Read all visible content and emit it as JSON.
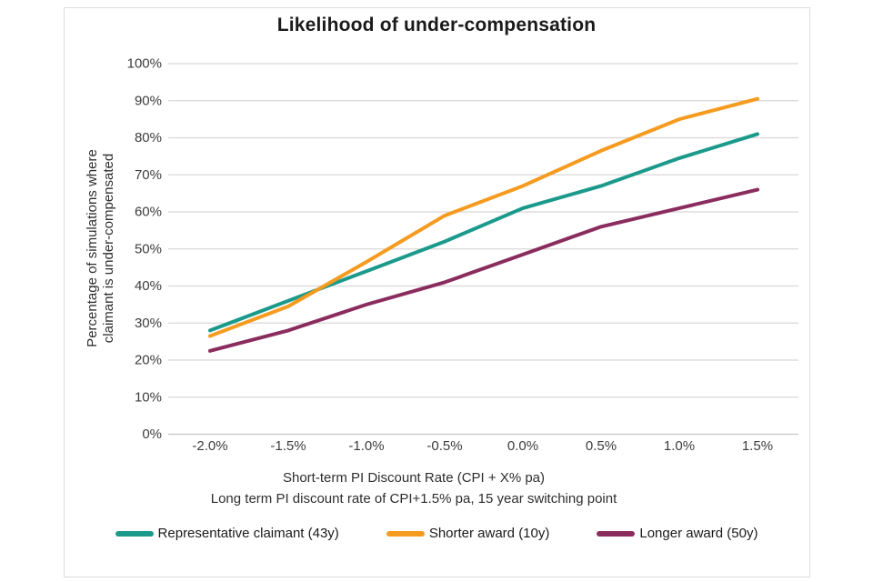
{
  "title": "Likelihood of under-compensation",
  "chart_data": {
    "type": "line",
    "title": "Likelihood of under-compensation",
    "categories": [
      "-2.0%",
      "-1.5%",
      "-1.0%",
      "-0.5%",
      "0.0%",
      "0.5%",
      "1.0%",
      "1.5%"
    ],
    "series": [
      {
        "name": "Representative claimant (43y)",
        "color": "#1B9A8C",
        "values": [
          28,
          36,
          44,
          52,
          61,
          67,
          74.5,
          81
        ]
      },
      {
        "name": "Shorter award (10y)",
        "color": "#F59B20",
        "values": [
          26.5,
          34.5,
          46.5,
          59,
          67,
          76.5,
          85,
          90.5
        ]
      },
      {
        "name": "Longer award (50y)",
        "color": "#8B2C5E",
        "values": [
          22.5,
          28,
          35,
          41,
          48.5,
          56,
          61,
          66
        ]
      }
    ],
    "yticks": [
      "0%",
      "10%",
      "20%",
      "30%",
      "40%",
      "50%",
      "60%",
      "70%",
      "80%",
      "90%",
      "100%"
    ],
    "ylim": [
      0,
      100
    ],
    "grid": true,
    "legend_position": "bottom",
    "ylabel_line1": "Percentage of simulations where",
    "ylabel_line2": "claimant is under-compensated",
    "xlabel_line1": "Short-term PI Discount Rate  (CPI + X% pa)",
    "xlabel_line2": "Long term PI discount rate of CPI+1.5% pa, 15 year switching point"
  }
}
